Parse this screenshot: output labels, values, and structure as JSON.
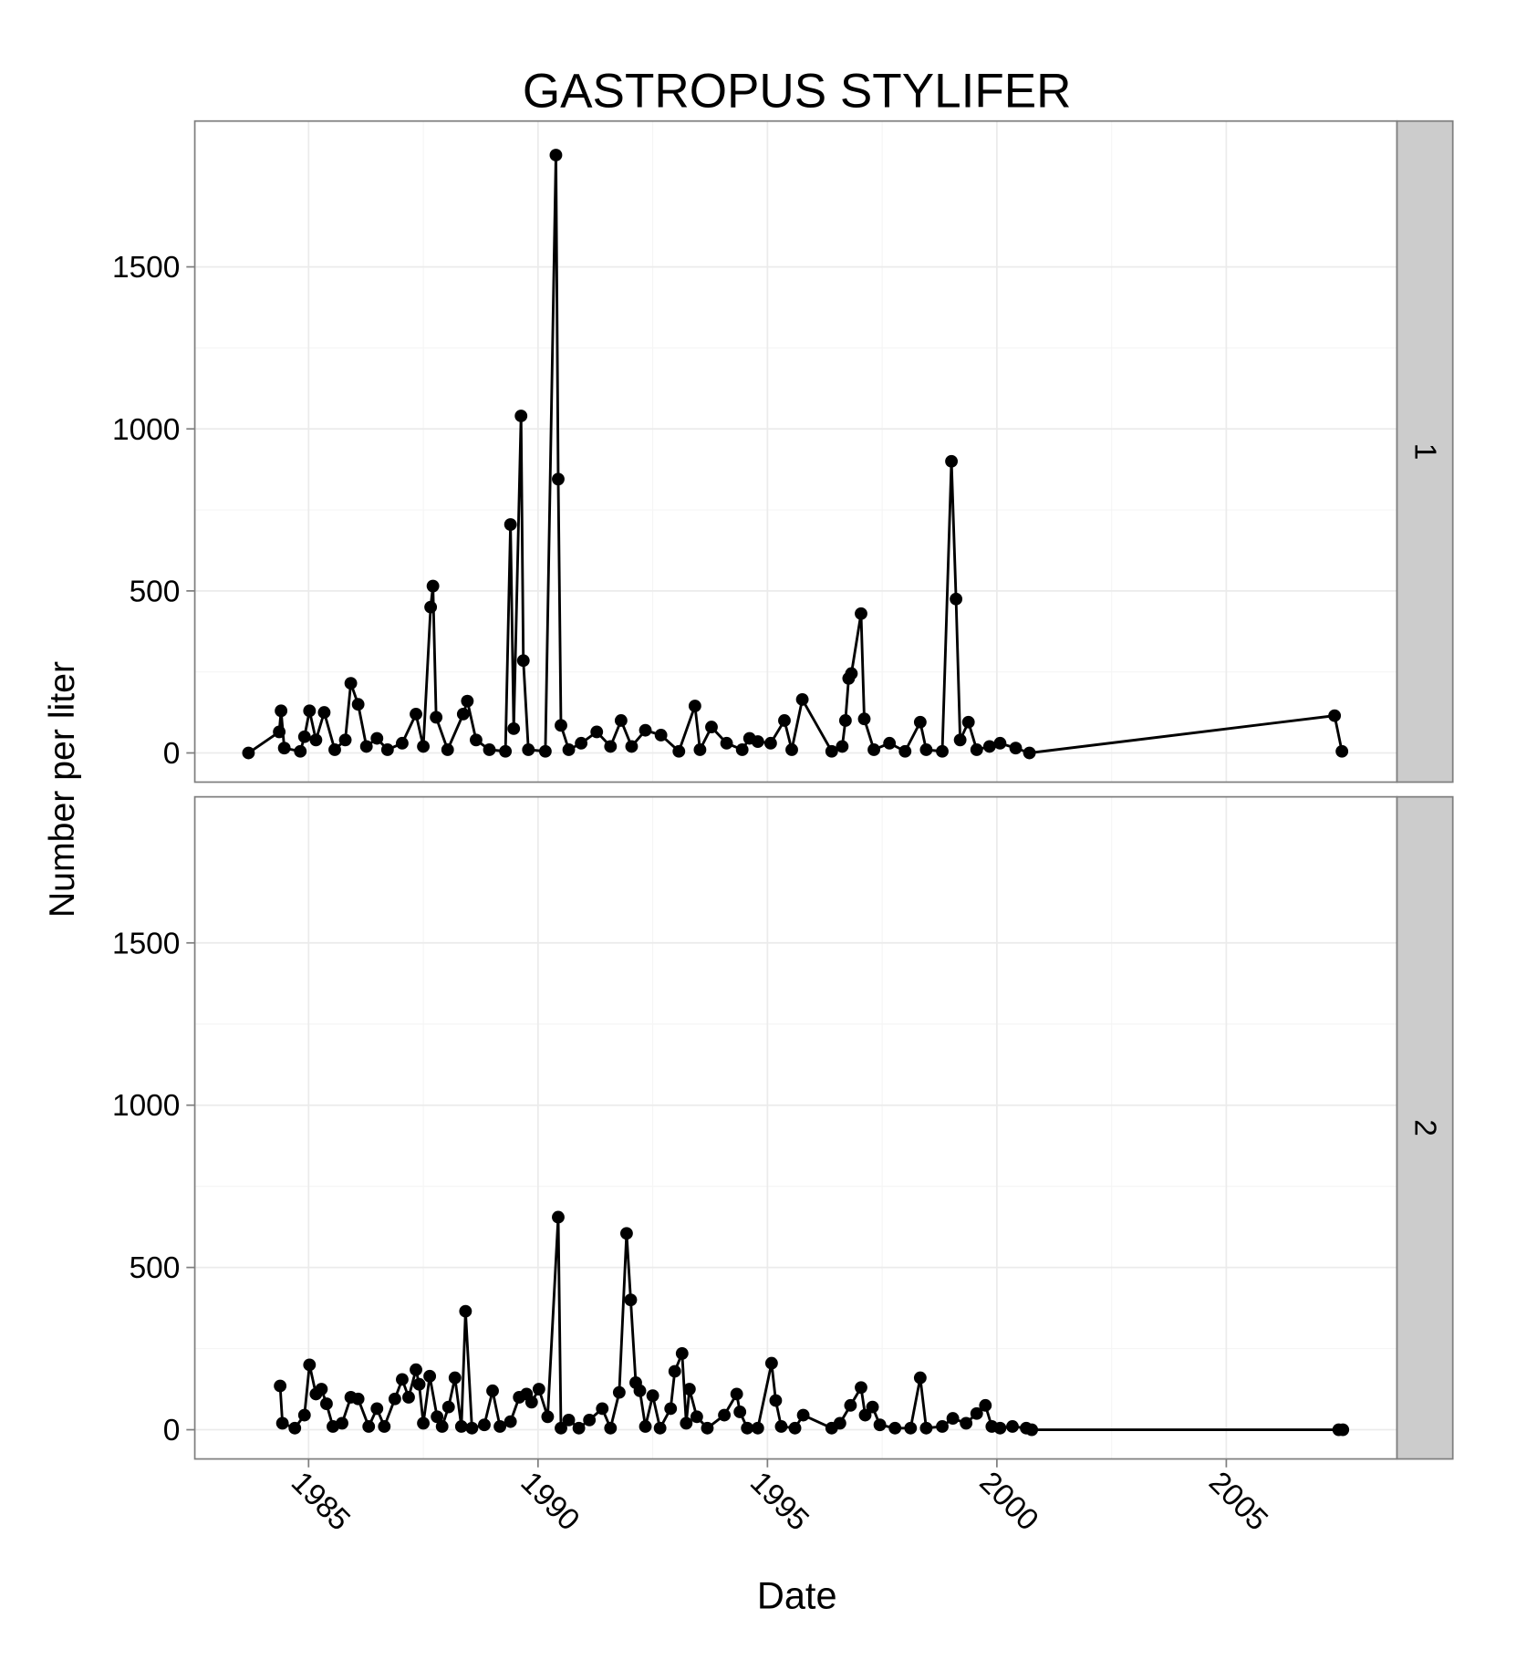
{
  "chart_data": [
    {
      "type": "line",
      "title": "GASTROPUS STYLIFER",
      "y_label": "Number per liter",
      "facet_label": "1",
      "color": "#000000",
      "x": [
        1983.69,
        1984.36,
        1984.4,
        1984.47,
        1984.82,
        1984.91,
        1985.02,
        1985.16,
        1985.34,
        1985.57,
        1985.8,
        1985.92,
        1986.08,
        1986.26,
        1986.49,
        1986.72,
        1987.04,
        1987.34,
        1987.5,
        1987.66,
        1987.71,
        1987.78,
        1988.03,
        1988.37,
        1988.46,
        1988.65,
        1988.94,
        1989.29,
        1989.4,
        1989.47,
        1989.63,
        1989.68,
        1989.79,
        1990.16,
        1990.39,
        1990.44,
        1990.5,
        1990.67,
        1990.94,
        1991.28,
        1991.58,
        1991.81,
        1992.04,
        1992.34,
        1992.68,
        1993.07,
        1993.42,
        1993.53,
        1993.78,
        1994.11,
        1994.45,
        1994.61,
        1994.79,
        1995.07,
        1995.37,
        1995.53,
        1995.76,
        1996.4,
        1996.63,
        1996.7,
        1996.77,
        1996.83,
        1997.04,
        1997.11,
        1997.32,
        1997.66,
        1998.0,
        1998.33,
        1998.46,
        1998.81,
        1999.01,
        1999.11,
        1999.2,
        1999.38,
        1999.56,
        1999.84,
        2000.07,
        2000.41,
        2000.71,
        2007.36,
        2007.52
      ],
      "values": [
        0,
        65,
        130,
        15,
        5,
        50,
        130,
        40,
        125,
        10,
        40,
        215,
        150,
        20,
        45,
        10,
        30,
        120,
        20,
        450,
        515,
        110,
        10,
        120,
        160,
        40,
        10,
        5,
        705,
        75,
        1040,
        285,
        10,
        5,
        1845,
        845,
        85,
        10,
        30,
        65,
        20,
        100,
        20,
        70,
        55,
        5,
        145,
        10,
        80,
        30,
        10,
        45,
        35,
        30,
        100,
        10,
        165,
        5,
        20,
        100,
        230,
        245,
        430,
        105,
        10,
        30,
        5,
        95,
        10,
        5,
        900,
        475,
        40,
        95,
        10,
        20,
        30,
        15,
        0,
        115,
        5
      ],
      "xlim": [
        1982.52,
        2008.72
      ],
      "xticks": [
        1985,
        1990,
        1995,
        2000,
        2005
      ],
      "ylim": [
        -90,
        1950
      ],
      "yticks": [
        0,
        500,
        1000,
        1500
      ],
      "grid": true
    },
    {
      "type": "line",
      "x_label": "Date",
      "facet_label": "2",
      "color": "#000000",
      "x": [
        1984.38,
        1984.43,
        1984.7,
        1984.91,
        1985.02,
        1985.16,
        1985.28,
        1985.39,
        1985.53,
        1985.73,
        1985.92,
        1986.08,
        1986.31,
        1986.49,
        1986.65,
        1986.88,
        1987.04,
        1987.18,
        1987.34,
        1987.41,
        1987.5,
        1987.64,
        1987.8,
        1987.91,
        1988.05,
        1988.19,
        1988.33,
        1988.42,
        1988.56,
        1988.83,
        1989.01,
        1989.17,
        1989.4,
        1989.59,
        1989.75,
        1989.86,
        1990.02,
        1990.21,
        1990.44,
        1990.5,
        1990.67,
        1990.89,
        1991.12,
        1991.4,
        1991.58,
        1991.77,
        1991.93,
        1992.02,
        1992.13,
        1992.22,
        1992.34,
        1992.5,
        1992.66,
        1992.89,
        1992.98,
        1993.14,
        1993.23,
        1993.3,
        1993.46,
        1993.69,
        1994.06,
        1994.33,
        1994.4,
        1994.56,
        1994.79,
        1995.09,
        1995.18,
        1995.3,
        1995.6,
        1995.78,
        1996.4,
        1996.58,
        1996.81,
        1997.04,
        1997.13,
        1997.29,
        1997.45,
        1997.78,
        1998.12,
        1998.33,
        1998.46,
        1998.81,
        1999.04,
        1999.33,
        1999.56,
        1999.75,
        1999.89,
        2000.07,
        2000.34,
        2000.64,
        2000.76,
        2007.45,
        2007.54
      ],
      "values": [
        135,
        20,
        5,
        45,
        200,
        110,
        125,
        80,
        10,
        20,
        100,
        95,
        10,
        65,
        10,
        95,
        155,
        100,
        185,
        140,
        20,
        165,
        40,
        10,
        70,
        160,
        10,
        365,
        5,
        15,
        120,
        10,
        25,
        100,
        110,
        85,
        125,
        40,
        655,
        5,
        30,
        5,
        30,
        65,
        5,
        115,
        605,
        400,
        145,
        120,
        10,
        105,
        5,
        65,
        180,
        235,
        20,
        125,
        40,
        5,
        45,
        110,
        55,
        5,
        5,
        205,
        90,
        10,
        5,
        45,
        5,
        20,
        75,
        130,
        45,
        70,
        15,
        5,
        5,
        160,
        5,
        10,
        35,
        20,
        50,
        75,
        10,
        5,
        10,
        5,
        0,
        0,
        0
      ],
      "xlim": [
        1982.52,
        2008.72
      ],
      "xticks": [
        1985,
        1990,
        1995,
        2000,
        2005
      ],
      "ylim": [
        -90,
        1950
      ],
      "yticks": [
        0,
        500,
        1000,
        1500
      ],
      "grid": true
    }
  ]
}
